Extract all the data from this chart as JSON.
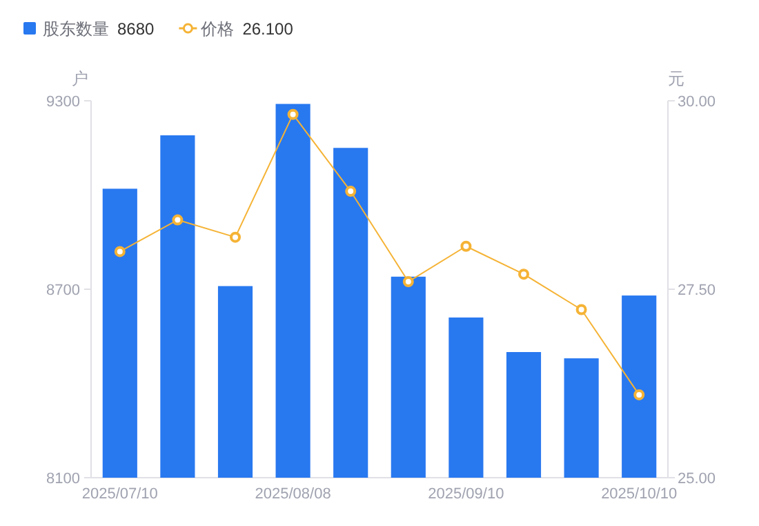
{
  "chart_data": {
    "type": "bar",
    "categories": [
      "2025/07/10",
      null,
      null,
      "2025/08/08",
      null,
      null,
      "2025/09/10",
      null,
      null,
      "2025/10/10"
    ],
    "series": [
      {
        "name": "股东数量",
        "color": "#2878f0",
        "values": [
          9020,
          9190,
          8710,
          9290,
          9150,
          8740,
          8610,
          8500,
          8480,
          8680
        ]
      },
      {
        "name": "价格",
        "type": "line",
        "axis": "y2",
        "color": "#f5b335",
        "marker": "circle",
        "line_style": "solid",
        "values": [
          28.0,
          28.42,
          28.19,
          29.82,
          28.8,
          27.6,
          28.07,
          27.7,
          27.23,
          26.1
        ]
      }
    ],
    "ylabel": "户",
    "y2label": "元",
    "ylim": [
      8100,
      9300
    ],
    "yticks": [
      8100,
      8700,
      9300
    ],
    "y2lim": [
      25,
      30
    ],
    "y2ticks": [
      {
        "value": 25,
        "label": "25.00"
      },
      {
        "value": 27.5,
        "label": "27.50"
      },
      {
        "value": 30,
        "label": "30.00"
      }
    ],
    "annotations": [
      "8680",
      "26.100"
    ],
    "legend": "top left",
    "grid": false
  }
}
